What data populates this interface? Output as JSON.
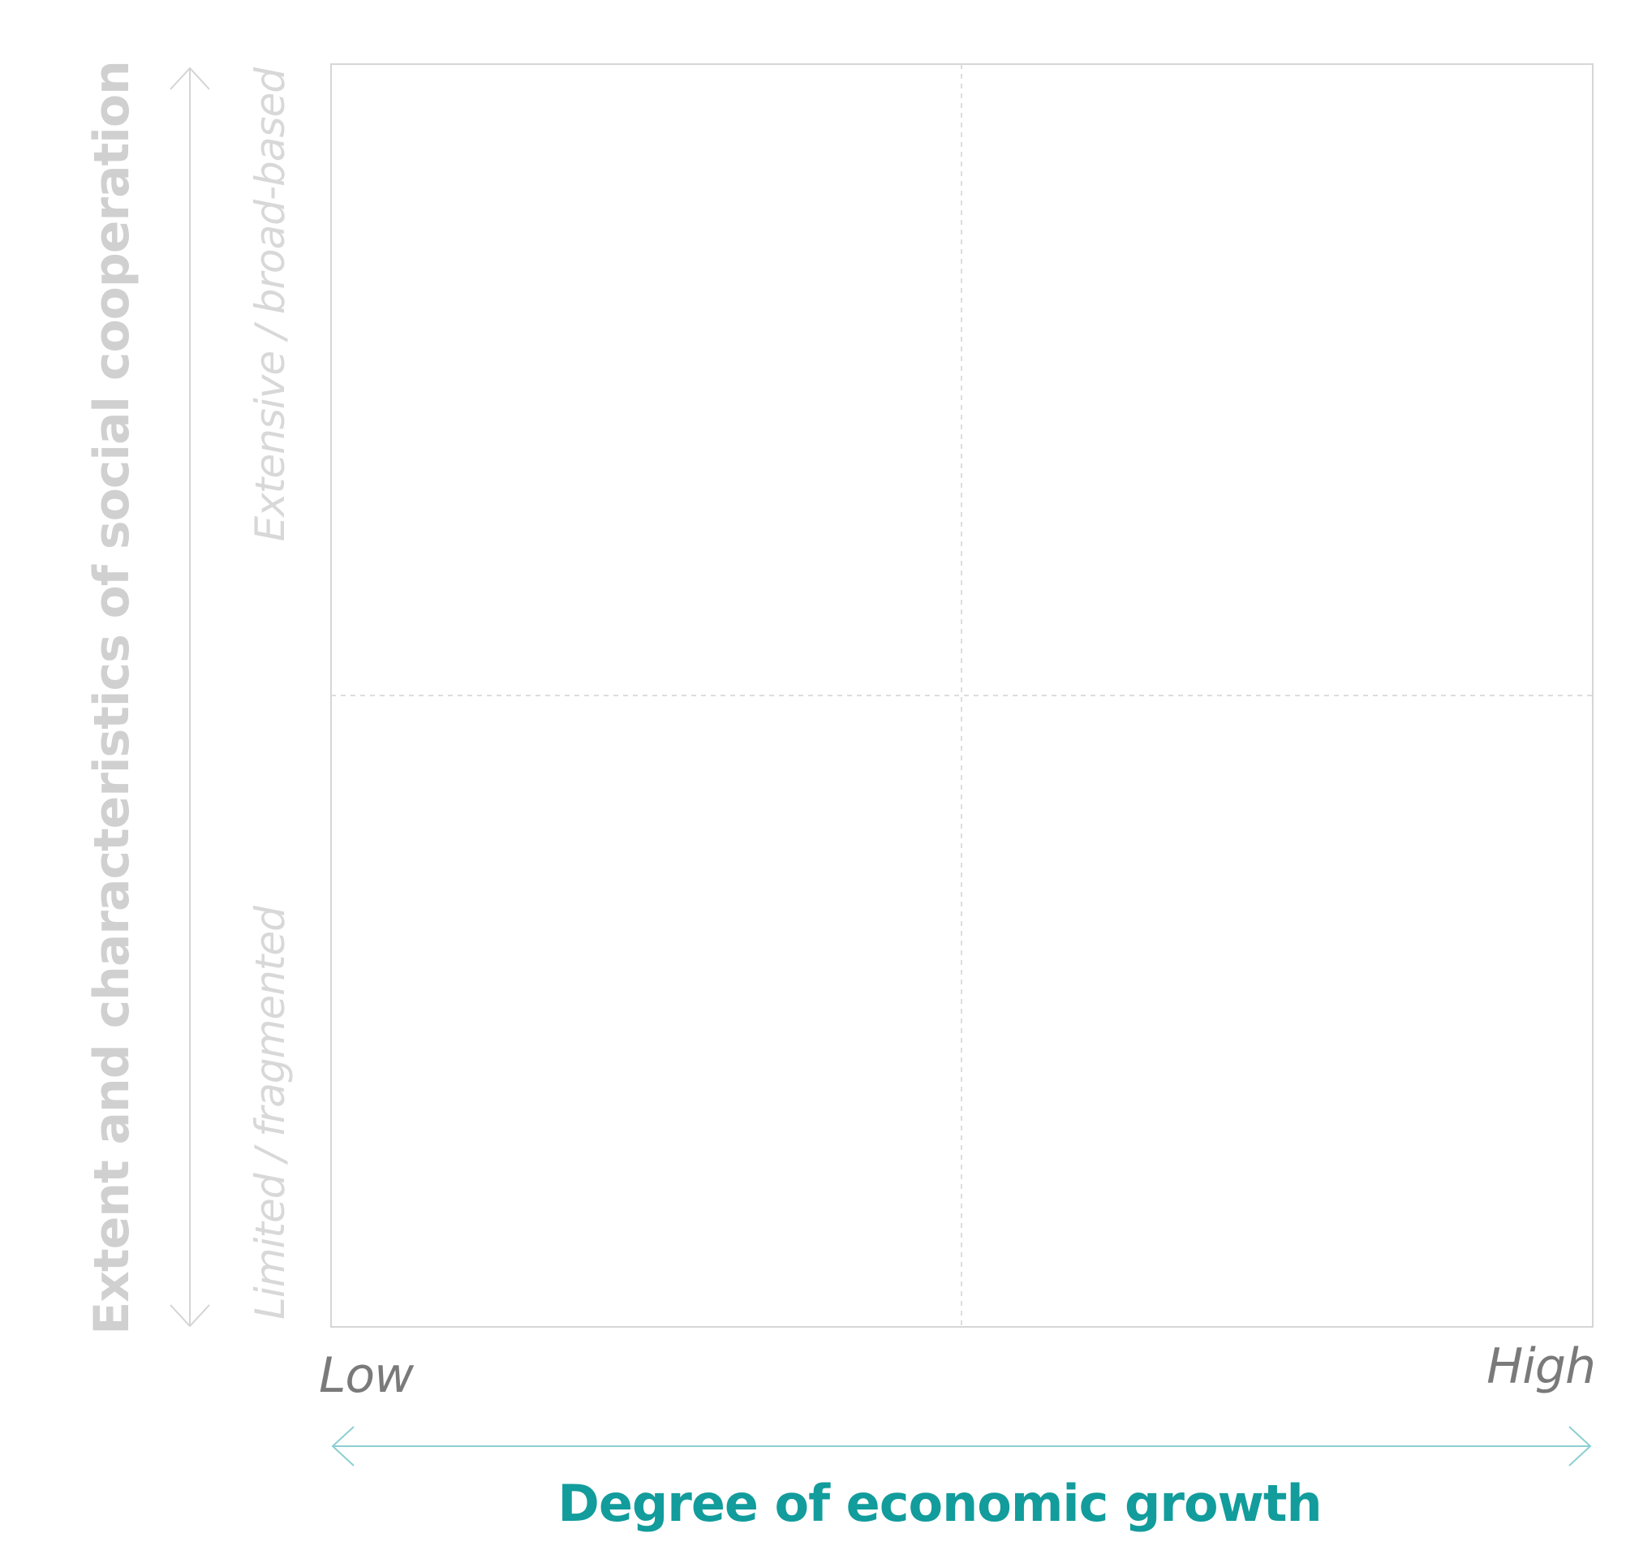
{
  "diagram": {
    "y_axis": {
      "title": "Extent and characteristics of social cooperation",
      "high_label": "Extensive / broad-based",
      "low_label": "Limited / fragmented",
      "arrow_color": "#d4d4d4",
      "title_color": "#d0d0d0"
    },
    "x_axis": {
      "title": "Degree of economic growth",
      "low_label": "Low",
      "high_label": "High",
      "arrow_color": "#8ccfd0",
      "title_color": "#129c9c"
    },
    "quadrant_grid": {
      "border_color": "#d6d6d6",
      "divider_color": "#dddddd",
      "divider_style": "dashed"
    }
  }
}
